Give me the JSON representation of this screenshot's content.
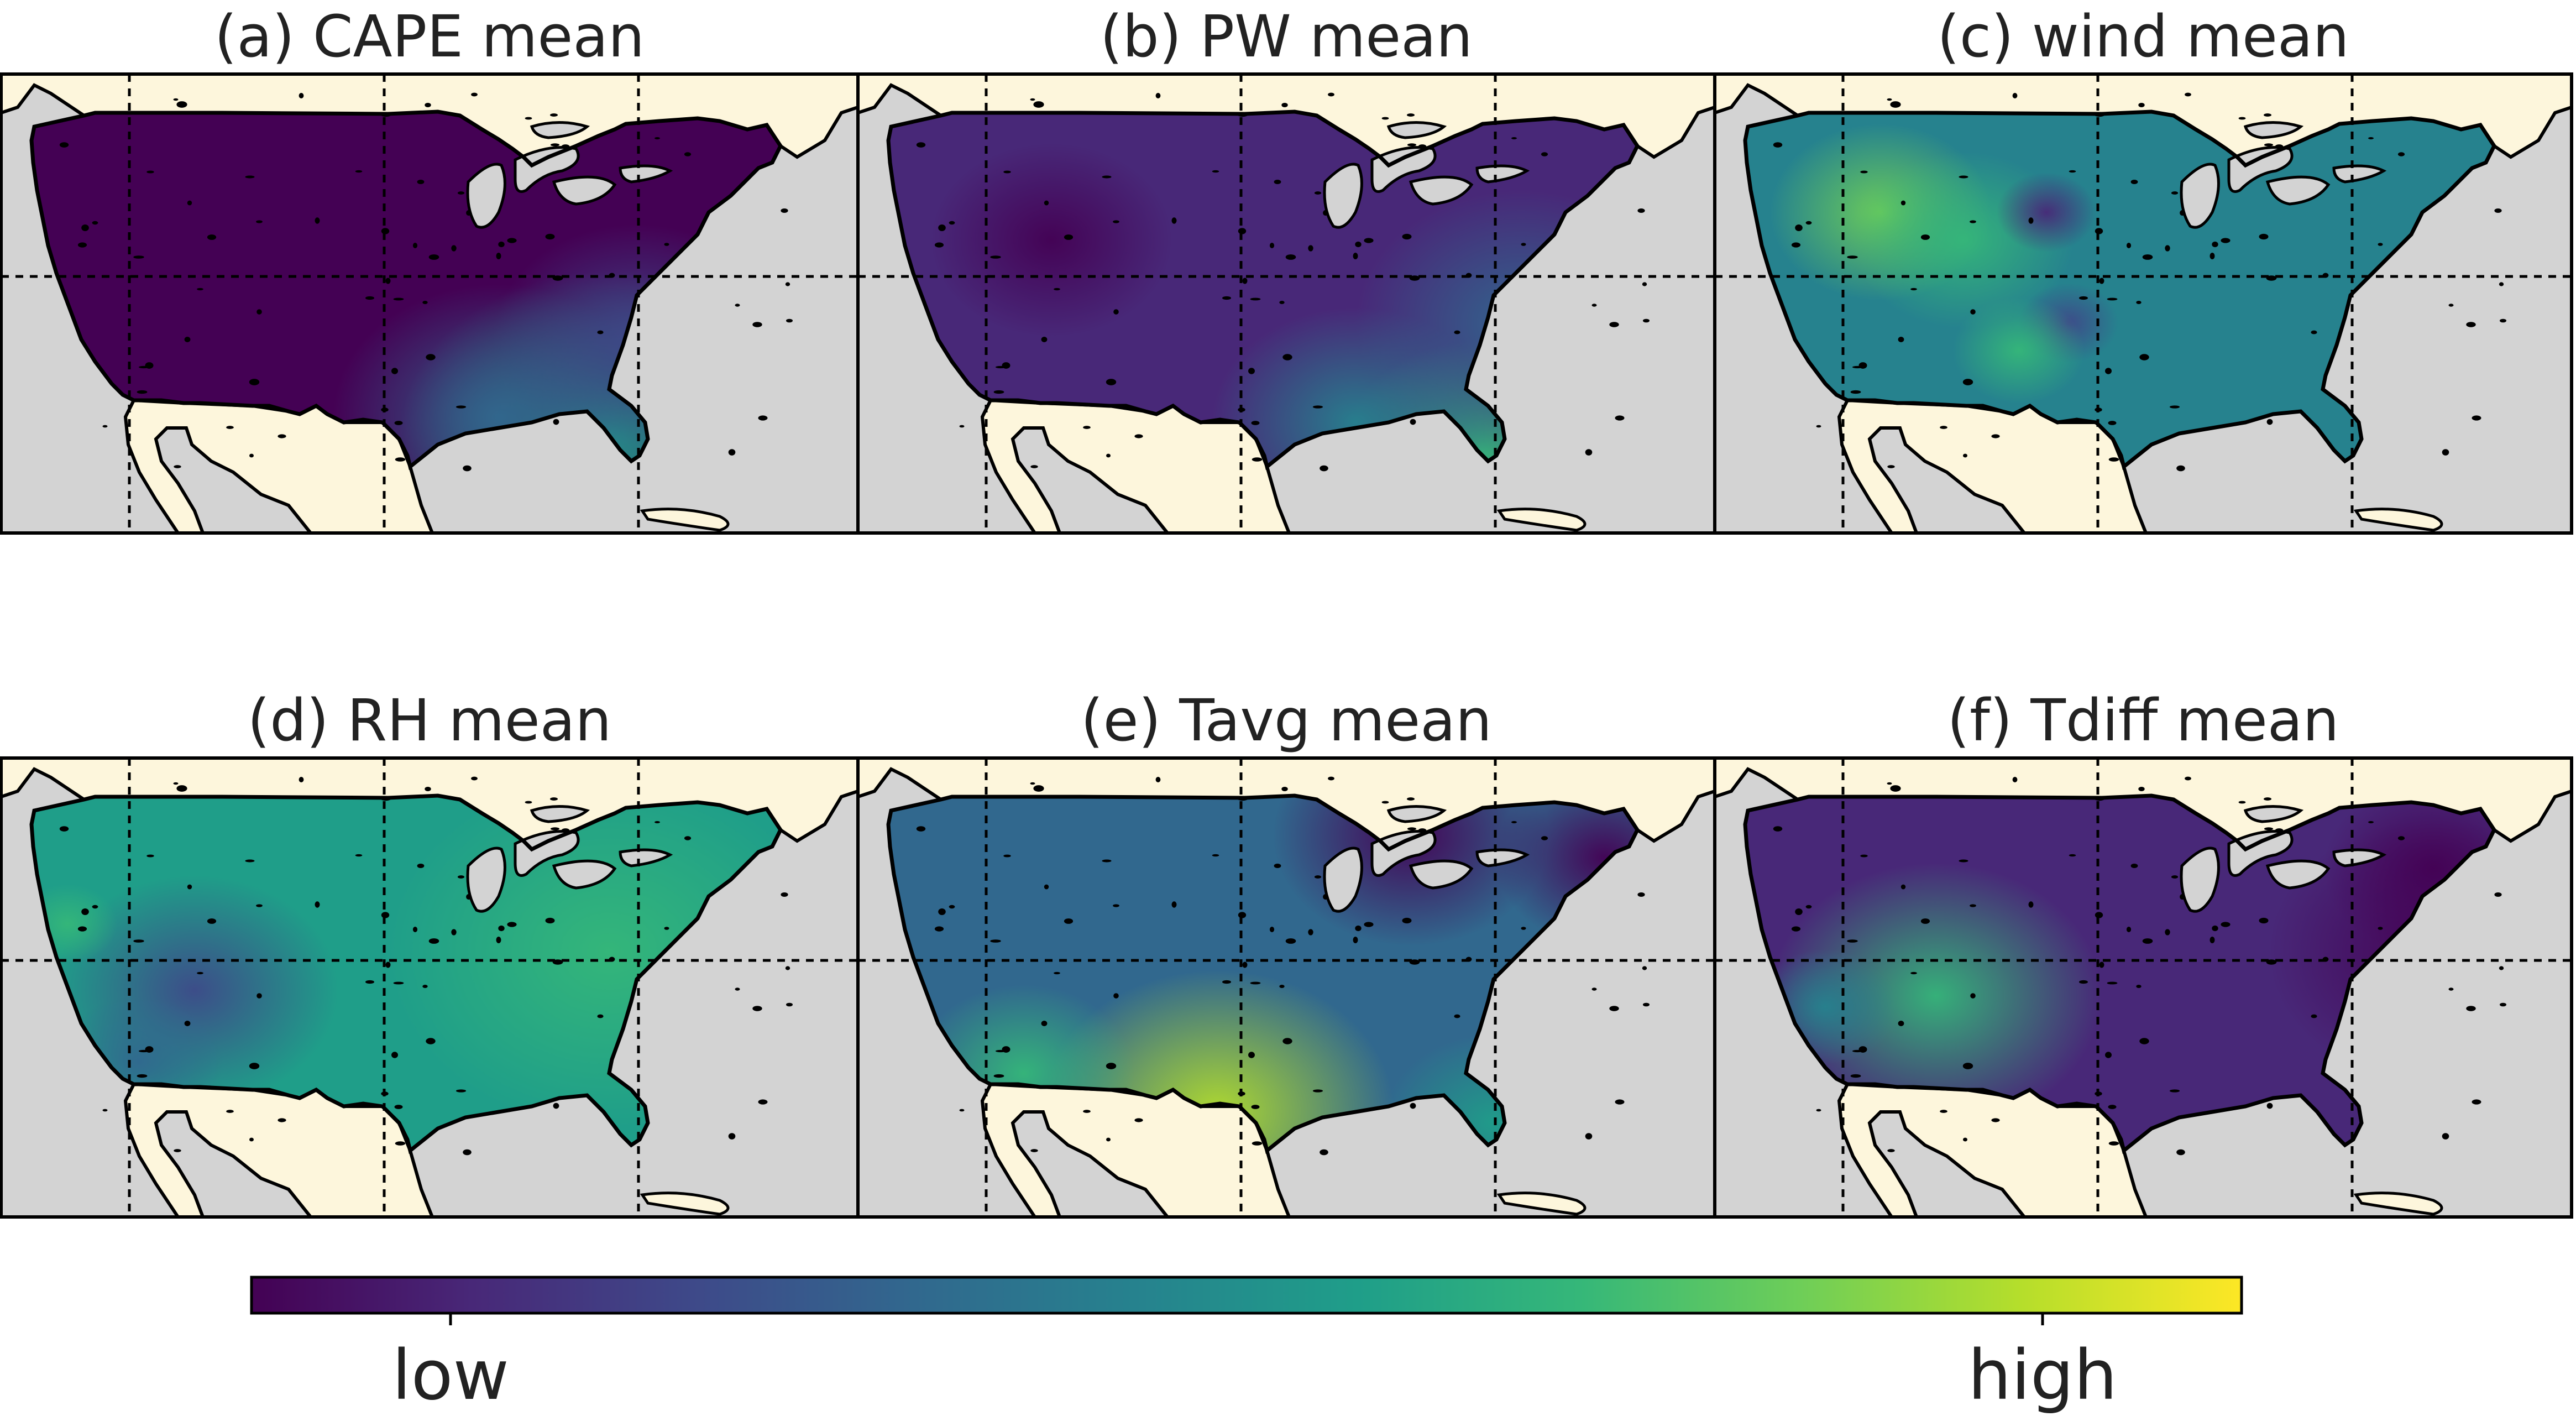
{
  "panels": [
    {
      "id": "a",
      "title": "(a) CAPE mean",
      "field": "cape"
    },
    {
      "id": "b",
      "title": "(b) PW mean",
      "field": "pw"
    },
    {
      "id": "c",
      "title": "(c) wind mean",
      "field": "wind"
    },
    {
      "id": "d",
      "title": "(d) RH mean",
      "field": "rh"
    },
    {
      "id": "e",
      "title": "(e) Tavg mean",
      "field": "tavg"
    },
    {
      "id": "f",
      "title": "(f) Tdiff mean",
      "field": "tdiff"
    }
  ],
  "colorbar": {
    "colormap": "viridis",
    "low_label": "low",
    "high_label": "high",
    "stops": [
      "#440154",
      "#482878",
      "#3e4989",
      "#31688e",
      "#26828e",
      "#1f9e89",
      "#35b779",
      "#6ece58",
      "#b5de2b",
      "#fde725"
    ]
  },
  "colors": {
    "ocean": "#d3d3d3",
    "land": "#fdf6dc",
    "coast": "#000000",
    "gridline": "#000000"
  }
}
